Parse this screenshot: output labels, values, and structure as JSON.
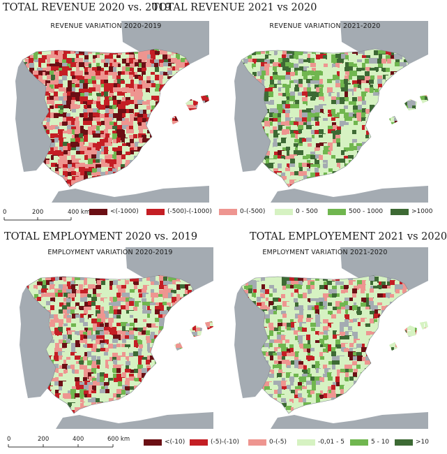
{
  "headings": {
    "revenue_2020": "TOTAL REVENUE 2020 vs. 2019",
    "revenue_2021": "TOTAL REVENUE 2021 vs 2020",
    "employment_2020": "TOTAL EMPLOYMENT 2020 vs. 2019",
    "employment_2021": "TOTAL EMPLOYEMENT 2021 vs 2020"
  },
  "maps": [
    {
      "title": "REVENUE VARIATION 2020-2019",
      "dominant": "negative"
    },
    {
      "title": "REVENUE VARIATION 2021-2020",
      "dominant": "positive"
    },
    {
      "title": "EMPLOYMENT VARIATION 2020-2019",
      "dominant": "mixed"
    },
    {
      "title": "EMPLOYMENT VARIATION 2021-2020",
      "dominant": "positive-light"
    }
  ],
  "colors": {
    "sea": "#ffffff",
    "neighbor_land": "#a4abb2",
    "no_data": "#a4abb2",
    "class_1": "#6b0f14",
    "class_2": "#c41e24",
    "class_3": "#ee9590",
    "class_4": "#d6f2c2",
    "class_5": "#70b64f",
    "class_6": "#3d6a34"
  },
  "legend_revenue": {
    "items": [
      "<(-1000)",
      "(-500)-(-1000)",
      "0-(-500)",
      "0 - 500",
      "500 - 1000",
      ">1000"
    ]
  },
  "legend_employment": {
    "items": [
      "<(-10)",
      "(-5)-(-10)",
      "0-(-5)",
      "-0,01 - 5",
      "5 - 10",
      ">10"
    ]
  },
  "scale_revenue": {
    "ticks": [
      "0",
      "200",
      "400 km"
    ]
  },
  "scale_employment": {
    "ticks": [
      "0",
      "200",
      "400",
      "600 km"
    ]
  }
}
